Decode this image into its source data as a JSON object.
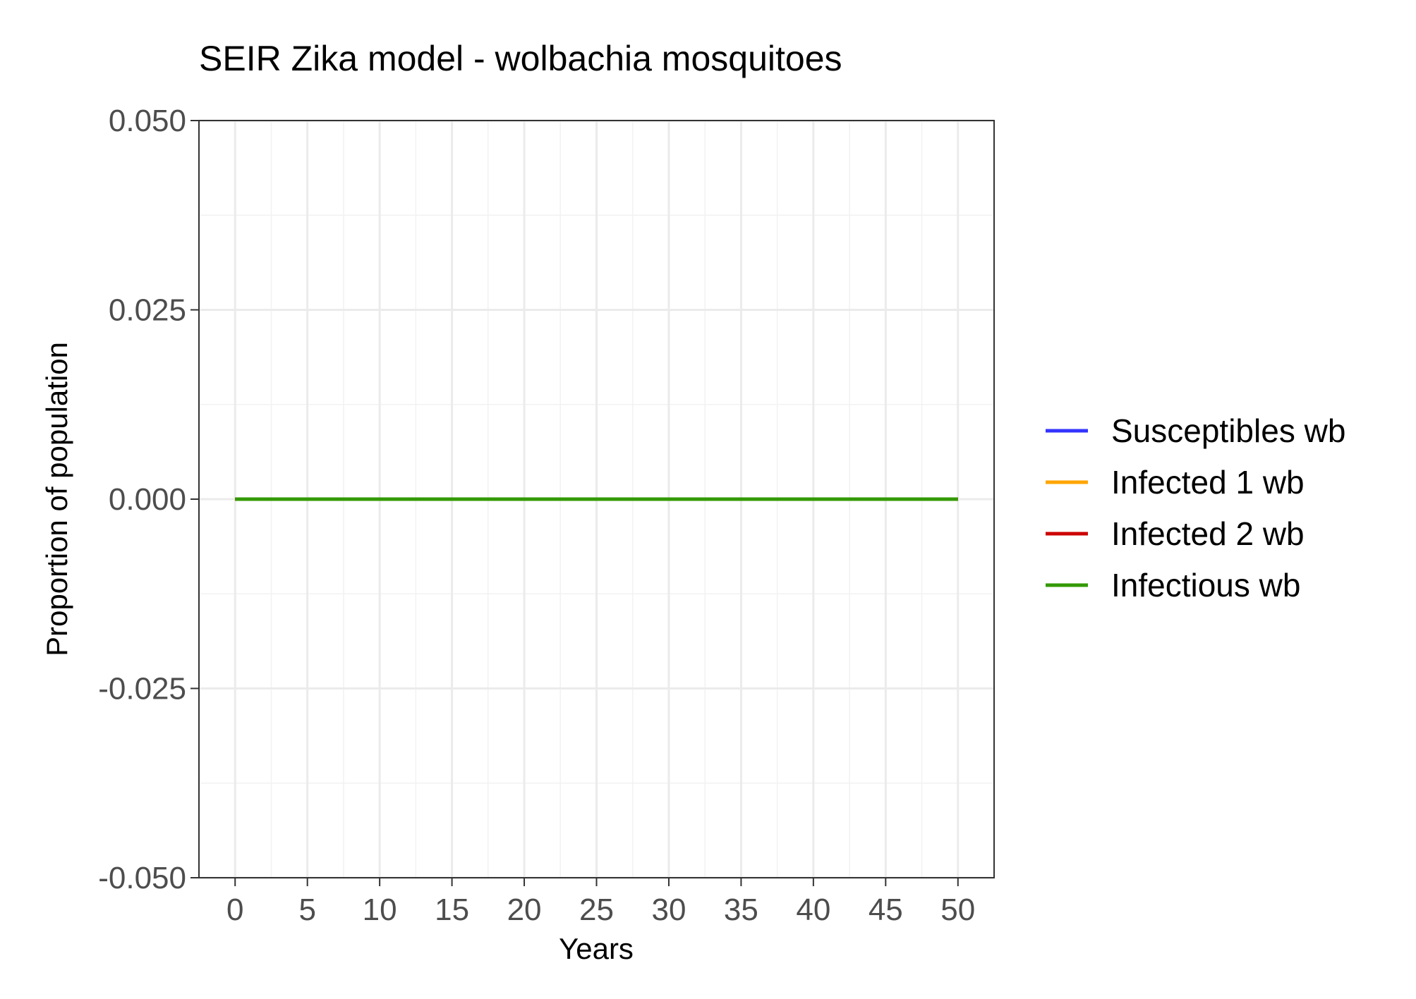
{
  "chart_data": {
    "type": "line",
    "title": "SEIR Zika model - wolbachia mosquitoes",
    "xlabel": "Years",
    "ylabel": "Proportion of population",
    "xlim": [
      -2.5,
      52.5
    ],
    "ylim": [
      -0.05,
      0.05
    ],
    "x_ticks": [
      "0",
      "5",
      "10",
      "15",
      "20",
      "25",
      "30",
      "35",
      "40",
      "45",
      "50"
    ],
    "y_ticks": [
      "-0.050",
      "-0.025",
      "0.000",
      "0.025",
      "0.050"
    ],
    "grid": true,
    "legend_position": "right",
    "x": [
      0,
      50
    ],
    "series": [
      {
        "name": "Susceptibles wb",
        "color": "#3333ff",
        "values": [
          0,
          0
        ]
      },
      {
        "name": "Infected 1 wb",
        "color": "#ffa500",
        "values": [
          0,
          0
        ]
      },
      {
        "name": "Infected 2 wb",
        "color": "#cc0000",
        "values": [
          0,
          0
        ]
      },
      {
        "name": "Infectious wb",
        "color": "#339900",
        "values": [
          0,
          0
        ]
      }
    ]
  }
}
